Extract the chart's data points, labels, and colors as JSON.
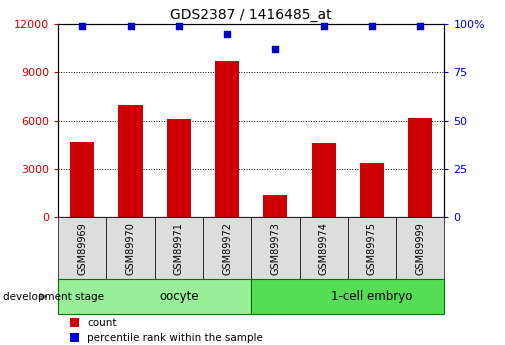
{
  "title": "GDS2387 / 1416485_at",
  "samples": [
    "GSM89969",
    "GSM89970",
    "GSM89971",
    "GSM89972",
    "GSM89973",
    "GSM89974",
    "GSM89975",
    "GSM89999"
  ],
  "counts": [
    4700,
    7000,
    6100,
    9700,
    1400,
    4600,
    3400,
    6200
  ],
  "percentiles": [
    99,
    99,
    99,
    95,
    87,
    99,
    99,
    99
  ],
  "ylim_left": [
    0,
    12000
  ],
  "ylim_right": [
    0,
    100
  ],
  "yticks_left": [
    0,
    3000,
    6000,
    9000,
    12000
  ],
  "yticks_right": [
    0,
    25,
    50,
    75,
    100
  ],
  "bar_color": "#cc0000",
  "dot_color": "#0000cc",
  "bar_width": 0.5,
  "groups": [
    {
      "label": "oocyte",
      "start": 0,
      "end": 4,
      "color": "#99ee99"
    },
    {
      "label": "1-cell embryo",
      "start": 4,
      "end": 8,
      "color": "#55dd55"
    }
  ],
  "tick_label_color_left": "#cc0000",
  "tick_label_color_right": "#0000cc",
  "background_color": "#ffffff",
  "legend_count_color": "#cc0000",
  "legend_pct_color": "#0000cc",
  "dev_stage_label": "development stage",
  "arrow_color": "#888888",
  "grid_color": "#000000",
  "xticklabel_bg": "#dddddd",
  "group_border_color": "#007700"
}
